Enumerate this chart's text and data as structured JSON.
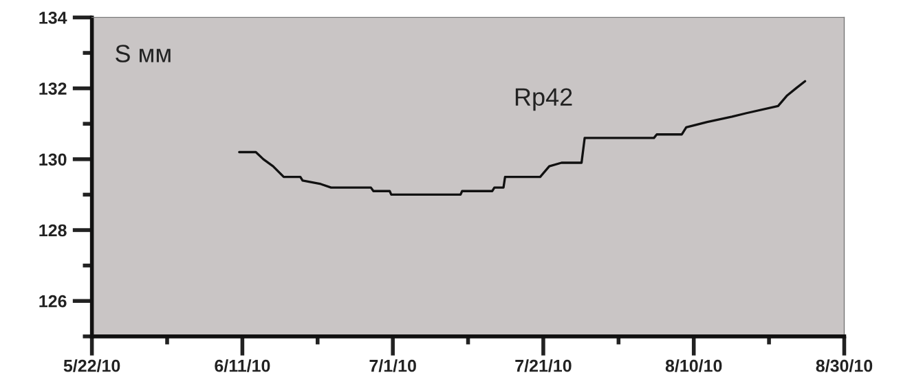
{
  "chart_data": {
    "type": "line",
    "ylabel": "S мм",
    "xlim": [
      "2010-05-22",
      "2010-08-30"
    ],
    "xticks": [
      {
        "value": "2010-05-22",
        "label": "5/22/10"
      },
      {
        "value": "2010-06-11",
        "label": "6/11/10"
      },
      {
        "value": "2010-07-01",
        "label": "7/1/10"
      },
      {
        "value": "2010-07-21",
        "label": "7/21/10"
      },
      {
        "value": "2010-08-10",
        "label": "8/10/10"
      },
      {
        "value": "2010-08-30",
        "label": "8/30/10"
      }
    ],
    "ylim": [
      125,
      134
    ],
    "yticks": [
      126,
      128,
      130,
      132,
      134
    ],
    "grid": false,
    "marker": "none",
    "line_style": "solid",
    "series": [
      {
        "name": "Rp42",
        "color": "#111111",
        "x": [
          "2010-06-10T14:00",
          "2010-06-12T19:00",
          "2010-06-13T19:00",
          "2010-06-15T02:00",
          "2010-06-16T12:00",
          "2010-06-18T17:00",
          "2010-06-19T00:00",
          "2010-06-21T10:00",
          "2010-06-22T19:00",
          "2010-06-28T02:00",
          "2010-06-28T10:00",
          "2010-06-30T14:00",
          "2010-06-30T19:00",
          "2010-07-10T00:00",
          "2010-07-10T05:00",
          "2010-07-14T05:00",
          "2010-07-14T12:00",
          "2010-07-15T17:00",
          "2010-07-15T22:00",
          "2010-07-20T14:00",
          "2010-07-21T19:00",
          "2010-07-23T10:00",
          "2010-07-26T02:00",
          "2010-07-26T12:00",
          "2010-08-04T17:00",
          "2010-08-05T02:00",
          "2010-08-08T10:00",
          "2010-08-09T00:00",
          "2010-08-11T19:00",
          "2010-08-15T02:00",
          "2010-08-17T00:00",
          "2010-08-21T05:00",
          "2010-08-22T10:00",
          "2010-08-23T14:00",
          "2010-08-24T19:00"
        ],
        "values": [
          130.2,
          130.2,
          130.0,
          129.8,
          129.5,
          129.5,
          129.4,
          129.3,
          129.2,
          129.2,
          129.1,
          129.1,
          129.0,
          129.0,
          129.1,
          129.1,
          129.2,
          129.2,
          129.5,
          129.5,
          129.8,
          129.9,
          129.9,
          130.6,
          130.6,
          130.7,
          130.7,
          130.9,
          131.05,
          131.2,
          131.3,
          131.5,
          131.8,
          132.0,
          132.2
        ]
      }
    ]
  }
}
